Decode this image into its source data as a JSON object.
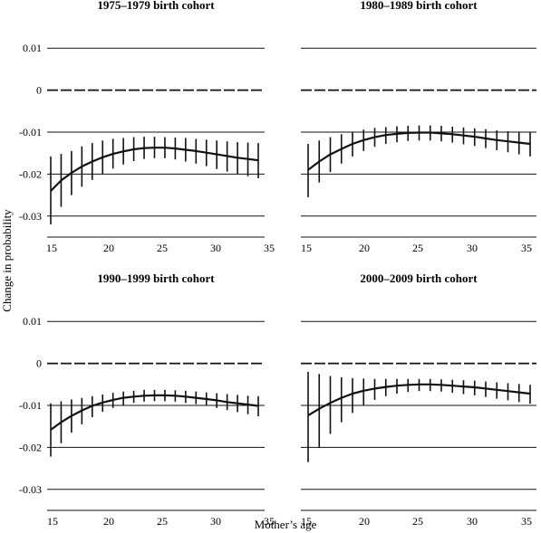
{
  "chart_data": {
    "type": "line",
    "xlabel": "Mother’s age",
    "ylabel": "Change in probability",
    "x_ticks": [
      15,
      20,
      25,
      30,
      35
    ],
    "y_ticks": [
      "0.01",
      "0",
      "-0.01",
      "-0.02",
      "-0.03"
    ],
    "y_tick_values": [
      0.01,
      0,
      -0.01,
      -0.02,
      -0.03
    ],
    "xlim": [
      15,
      35
    ],
    "ylim": [
      -0.035,
      0.015
    ],
    "grid": "horizontal",
    "reference_line": {
      "y": 0,
      "style": "dashed"
    },
    "panels": [
      {
        "title": "1975–1979 birth cohort",
        "x": [
          15,
          16,
          17,
          18,
          19,
          20,
          21,
          22,
          23,
          24,
          25,
          26,
          27,
          28,
          29,
          30,
          31,
          32,
          33,
          34,
          35
        ],
        "y": [
          -0.024,
          -0.0215,
          -0.0197,
          -0.0182,
          -0.017,
          -0.016,
          -0.0152,
          -0.0146,
          -0.0141,
          -0.0138,
          -0.0137,
          -0.0137,
          -0.0139,
          -0.0142,
          -0.0145,
          -0.0149,
          -0.0153,
          -0.0157,
          -0.0161,
          -0.0164,
          -0.0167
        ],
        "lower": [
          -0.032,
          -0.0278,
          -0.025,
          -0.023,
          -0.0214,
          -0.02,
          -0.0187,
          -0.0177,
          -0.0169,
          -0.0164,
          -0.0162,
          -0.0162,
          -0.0165,
          -0.017,
          -0.0175,
          -0.0181,
          -0.0188,
          -0.0194,
          -0.02,
          -0.0205,
          -0.021
        ],
        "upper": [
          -0.0158,
          -0.0152,
          -0.0145,
          -0.0134,
          -0.0126,
          -0.012,
          -0.0116,
          -0.0114,
          -0.0112,
          -0.0111,
          -0.0111,
          -0.0112,
          -0.0113,
          -0.0114,
          -0.0116,
          -0.0118,
          -0.012,
          -0.0122,
          -0.0124,
          -0.0125,
          -0.0126
        ]
      },
      {
        "title": "1980–1989 birth cohort",
        "x": [
          15,
          16,
          17,
          18,
          19,
          20,
          21,
          22,
          23,
          24,
          25,
          26,
          27,
          28,
          29,
          30,
          31,
          32,
          33,
          34,
          35
        ],
        "y": [
          -0.019,
          -0.017,
          -0.0153,
          -0.014,
          -0.0128,
          -0.0119,
          -0.0112,
          -0.0107,
          -0.0104,
          -0.0102,
          -0.0101,
          -0.0101,
          -0.0103,
          -0.0105,
          -0.0108,
          -0.0111,
          -0.0115,
          -0.0119,
          -0.0122,
          -0.0125,
          -0.0128
        ],
        "lower": [
          -0.0255,
          -0.022,
          -0.0195,
          -0.0175,
          -0.0158,
          -0.0145,
          -0.0135,
          -0.0128,
          -0.0124,
          -0.0121,
          -0.012,
          -0.012,
          -0.0122,
          -0.0125,
          -0.0129,
          -0.0133,
          -0.0138,
          -0.0143,
          -0.0148,
          -0.0153,
          -0.0158
        ],
        "upper": [
          -0.0128,
          -0.012,
          -0.0112,
          -0.0105,
          -0.0099,
          -0.0094,
          -0.009,
          -0.0088,
          -0.0086,
          -0.0085,
          -0.0084,
          -0.0084,
          -0.0085,
          -0.0087,
          -0.0089,
          -0.0091,
          -0.0093,
          -0.0096,
          -0.0098,
          -0.01,
          -0.0101
        ]
      },
      {
        "title": "1990–1999 birth cohort",
        "x": [
          15,
          16,
          17,
          18,
          19,
          20,
          21,
          22,
          23,
          24,
          25,
          26,
          27,
          28,
          29,
          30,
          31,
          32,
          33,
          34,
          35
        ],
        "y": [
          -0.0158,
          -0.014,
          -0.0125,
          -0.0112,
          -0.0101,
          -0.0093,
          -0.0087,
          -0.0082,
          -0.0079,
          -0.0077,
          -0.0076,
          -0.0076,
          -0.0077,
          -0.0079,
          -0.0082,
          -0.0085,
          -0.0088,
          -0.0092,
          -0.0095,
          -0.0098,
          -0.0101
        ],
        "lower": [
          -0.0222,
          -0.019,
          -0.0165,
          -0.0145,
          -0.0128,
          -0.0115,
          -0.0106,
          -0.0099,
          -0.0094,
          -0.0091,
          -0.009,
          -0.009,
          -0.0091,
          -0.0094,
          -0.0097,
          -0.0101,
          -0.0106,
          -0.0111,
          -0.0116,
          -0.0121,
          -0.0126
        ],
        "upper": [
          -0.0095,
          -0.009,
          -0.0086,
          -0.0082,
          -0.0078,
          -0.0074,
          -0.007,
          -0.0067,
          -0.0065,
          -0.0063,
          -0.0063,
          -0.0063,
          -0.0064,
          -0.0065,
          -0.0067,
          -0.0069,
          -0.0071,
          -0.0073,
          -0.0075,
          -0.0077,
          -0.0078
        ]
      },
      {
        "title": "2000–2009 birth cohort",
        "x": [
          15,
          16,
          17,
          18,
          19,
          20,
          21,
          22,
          23,
          24,
          25,
          26,
          27,
          28,
          29,
          30,
          31,
          32,
          33,
          34,
          35
        ],
        "y": [
          -0.0124,
          -0.0108,
          -0.0094,
          -0.0082,
          -0.0072,
          -0.0065,
          -0.006,
          -0.0056,
          -0.0053,
          -0.0051,
          -0.005,
          -0.005,
          -0.0051,
          -0.0053,
          -0.0055,
          -0.0057,
          -0.006,
          -0.0063,
          -0.0066,
          -0.0069,
          -0.0072
        ],
        "lower": [
          -0.0235,
          -0.02,
          -0.0168,
          -0.014,
          -0.0118,
          -0.01,
          -0.0087,
          -0.0078,
          -0.0072,
          -0.0068,
          -0.0066,
          -0.0066,
          -0.0067,
          -0.007,
          -0.0073,
          -0.0076,
          -0.008,
          -0.0084,
          -0.0088,
          -0.0092,
          -0.0096
        ],
        "upper": [
          -0.002,
          -0.0025,
          -0.003,
          -0.0033,
          -0.0035,
          -0.0036,
          -0.0037,
          -0.0037,
          -0.0037,
          -0.0037,
          -0.0037,
          -0.0037,
          -0.0038,
          -0.0039,
          -0.004,
          -0.0041,
          -0.0043,
          -0.0045,
          -0.0047,
          -0.0049,
          -0.0051
        ]
      }
    ]
  }
}
